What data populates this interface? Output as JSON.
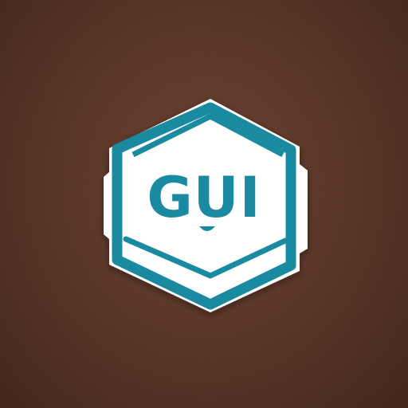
{
  "logo": {
    "text": "GUI",
    "colors": {
      "background": "#5a3526",
      "accent": "#1a8aa0",
      "sticker_border": "#ffffff"
    }
  }
}
